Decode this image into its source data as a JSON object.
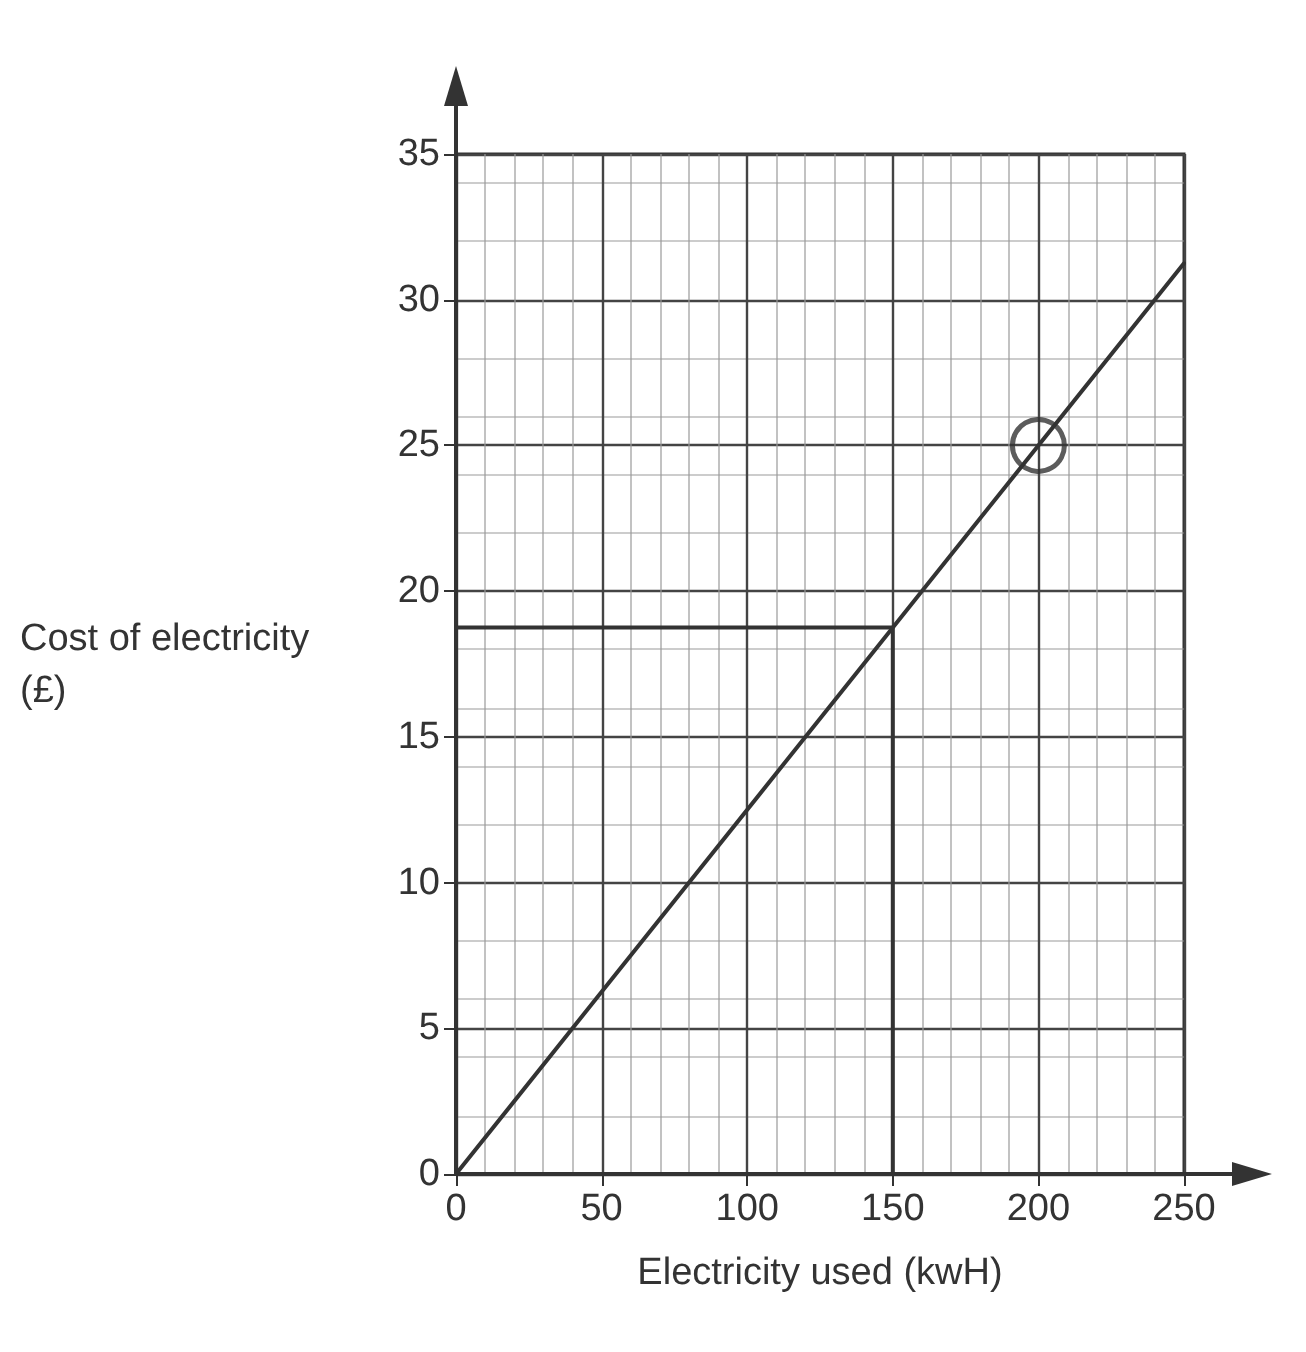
{
  "chart_data": {
    "type": "line",
    "xlabel": "Electricity used (kwH)",
    "ylabel": "Cost of electricity (£)",
    "xlim": [
      0,
      250
    ],
    "xticks": [
      0,
      50,
      100,
      150,
      200,
      250
    ],
    "ylim": [
      0,
      35
    ],
    "yticks": [
      0,
      5,
      10,
      15,
      20,
      25,
      30,
      35
    ],
    "grid": true,
    "marker": "none",
    "line_style": "solid",
    "series": [
      {
        "type": "line",
        "color": "#333333",
        "x": [
          0,
          250
        ],
        "values": [
          0,
          31.25
        ]
      },
      {
        "type": "line",
        "color": "#333333",
        "x": [
          0,
          150,
          150
        ],
        "values": [
          18.75,
          18.75,
          0
        ]
      },
      {
        "type": "scatter",
        "color": "#333333",
        "marker": "circle",
        "x": [
          200
        ],
        "values": [
          25
        ]
      }
    ]
  }
}
